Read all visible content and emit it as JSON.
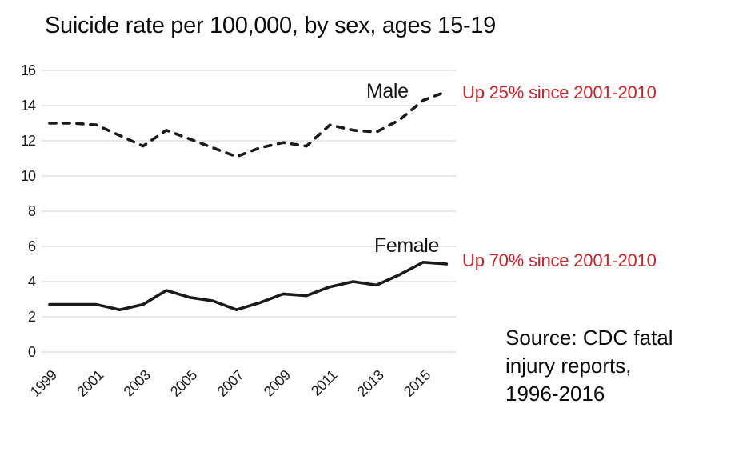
{
  "chart_data": {
    "type": "line",
    "title": "Suicide rate per 100,000, by sex, ages 15-19",
    "xlabel": "",
    "ylabel": "",
    "x": [
      1999,
      2000,
      2001,
      2002,
      2003,
      2004,
      2005,
      2006,
      2007,
      2008,
      2009,
      2010,
      2011,
      2012,
      2013,
      2014,
      2015,
      2016
    ],
    "x_tick_labels": [
      "1999",
      "2001",
      "2003",
      "2005",
      "2007",
      "2009",
      "2011",
      "2013",
      "2015"
    ],
    "y_ticks": [
      0,
      2,
      4,
      6,
      8,
      10,
      12,
      14,
      16
    ],
    "ylim": [
      0,
      16
    ],
    "grid": "horizontal",
    "legend_position": "inline-labels",
    "series": [
      {
        "name": "Male",
        "label": "Male",
        "line_style": "dashed",
        "color": "#1a1a1a",
        "values": [
          13.0,
          13.0,
          12.9,
          12.3,
          11.7,
          12.6,
          12.1,
          11.6,
          11.1,
          11.6,
          11.9,
          11.7,
          12.9,
          12.6,
          12.5,
          13.2,
          14.3,
          14.8
        ],
        "annotation": "Up 25% since 2001-2010"
      },
      {
        "name": "Female",
        "label": "Female",
        "line_style": "solid",
        "color": "#1a1a1a",
        "values": [
          2.7,
          2.7,
          2.7,
          2.4,
          2.7,
          3.5,
          3.1,
          2.9,
          2.4,
          2.8,
          3.3,
          3.2,
          3.7,
          4.0,
          3.8,
          4.4,
          5.1,
          5.0
        ],
        "annotation": "Up 70% since 2001-2010"
      }
    ],
    "annotation_color": "#cc2127",
    "gridline_color": "#d9d9d9",
    "tick_label_color": "#1a1a1a"
  },
  "source": {
    "lines": [
      "Source: CDC fatal",
      "injury reports,",
      "1996-2016"
    ]
  }
}
